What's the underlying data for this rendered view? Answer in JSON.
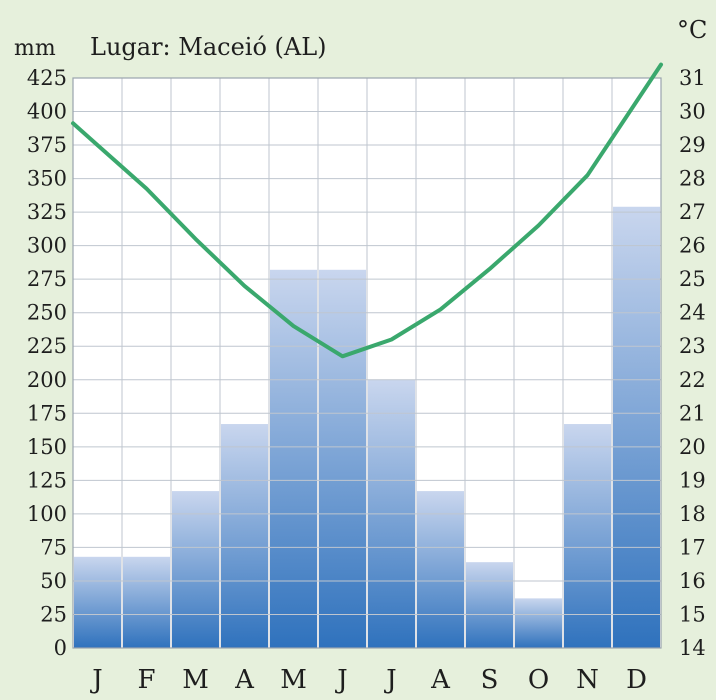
{
  "chart_data": {
    "type": "bar",
    "title": "Lugar: Maceió (AL)",
    "categories": [
      "J",
      "F",
      "M",
      "A",
      "M",
      "J",
      "J",
      "A",
      "S",
      "O",
      "N",
      "D"
    ],
    "precipitation_unit": "mm",
    "precipitation": [
      68,
      68,
      117,
      167,
      282,
      282,
      200,
      117,
      64,
      37,
      167,
      329
    ],
    "temperature_unit": "°C",
    "temperature": [
      29,
      27.7,
      26.2,
      24.8,
      23.6,
      22.7,
      23.2,
      24.1,
      25.3,
      26.6,
      28.1,
      30.3
    ],
    "y_left_ticks": [
      "425",
      "400",
      "375",
      "350",
      "325",
      "300",
      "275",
      "250",
      "225",
      "200",
      "175",
      "150",
      "125",
      "100",
      "75",
      "50",
      "25",
      "0"
    ],
    "y_right_ticks": [
      "31",
      "30",
      "29",
      "28",
      "27",
      "26",
      "25",
      "24",
      "23",
      "22",
      "21",
      "20",
      "19",
      "18",
      "17",
      "16",
      "15",
      "14"
    ],
    "ylim_left": [
      0,
      425
    ],
    "ylim_right": [
      14,
      31
    ],
    "grid": true,
    "colors": {
      "background": "#e6f0dc",
      "bar_top": "#c9d6ee",
      "bar_bottom": "#2f72bd",
      "line": "#3aa86d",
      "grid": "#bfc6cf"
    }
  }
}
